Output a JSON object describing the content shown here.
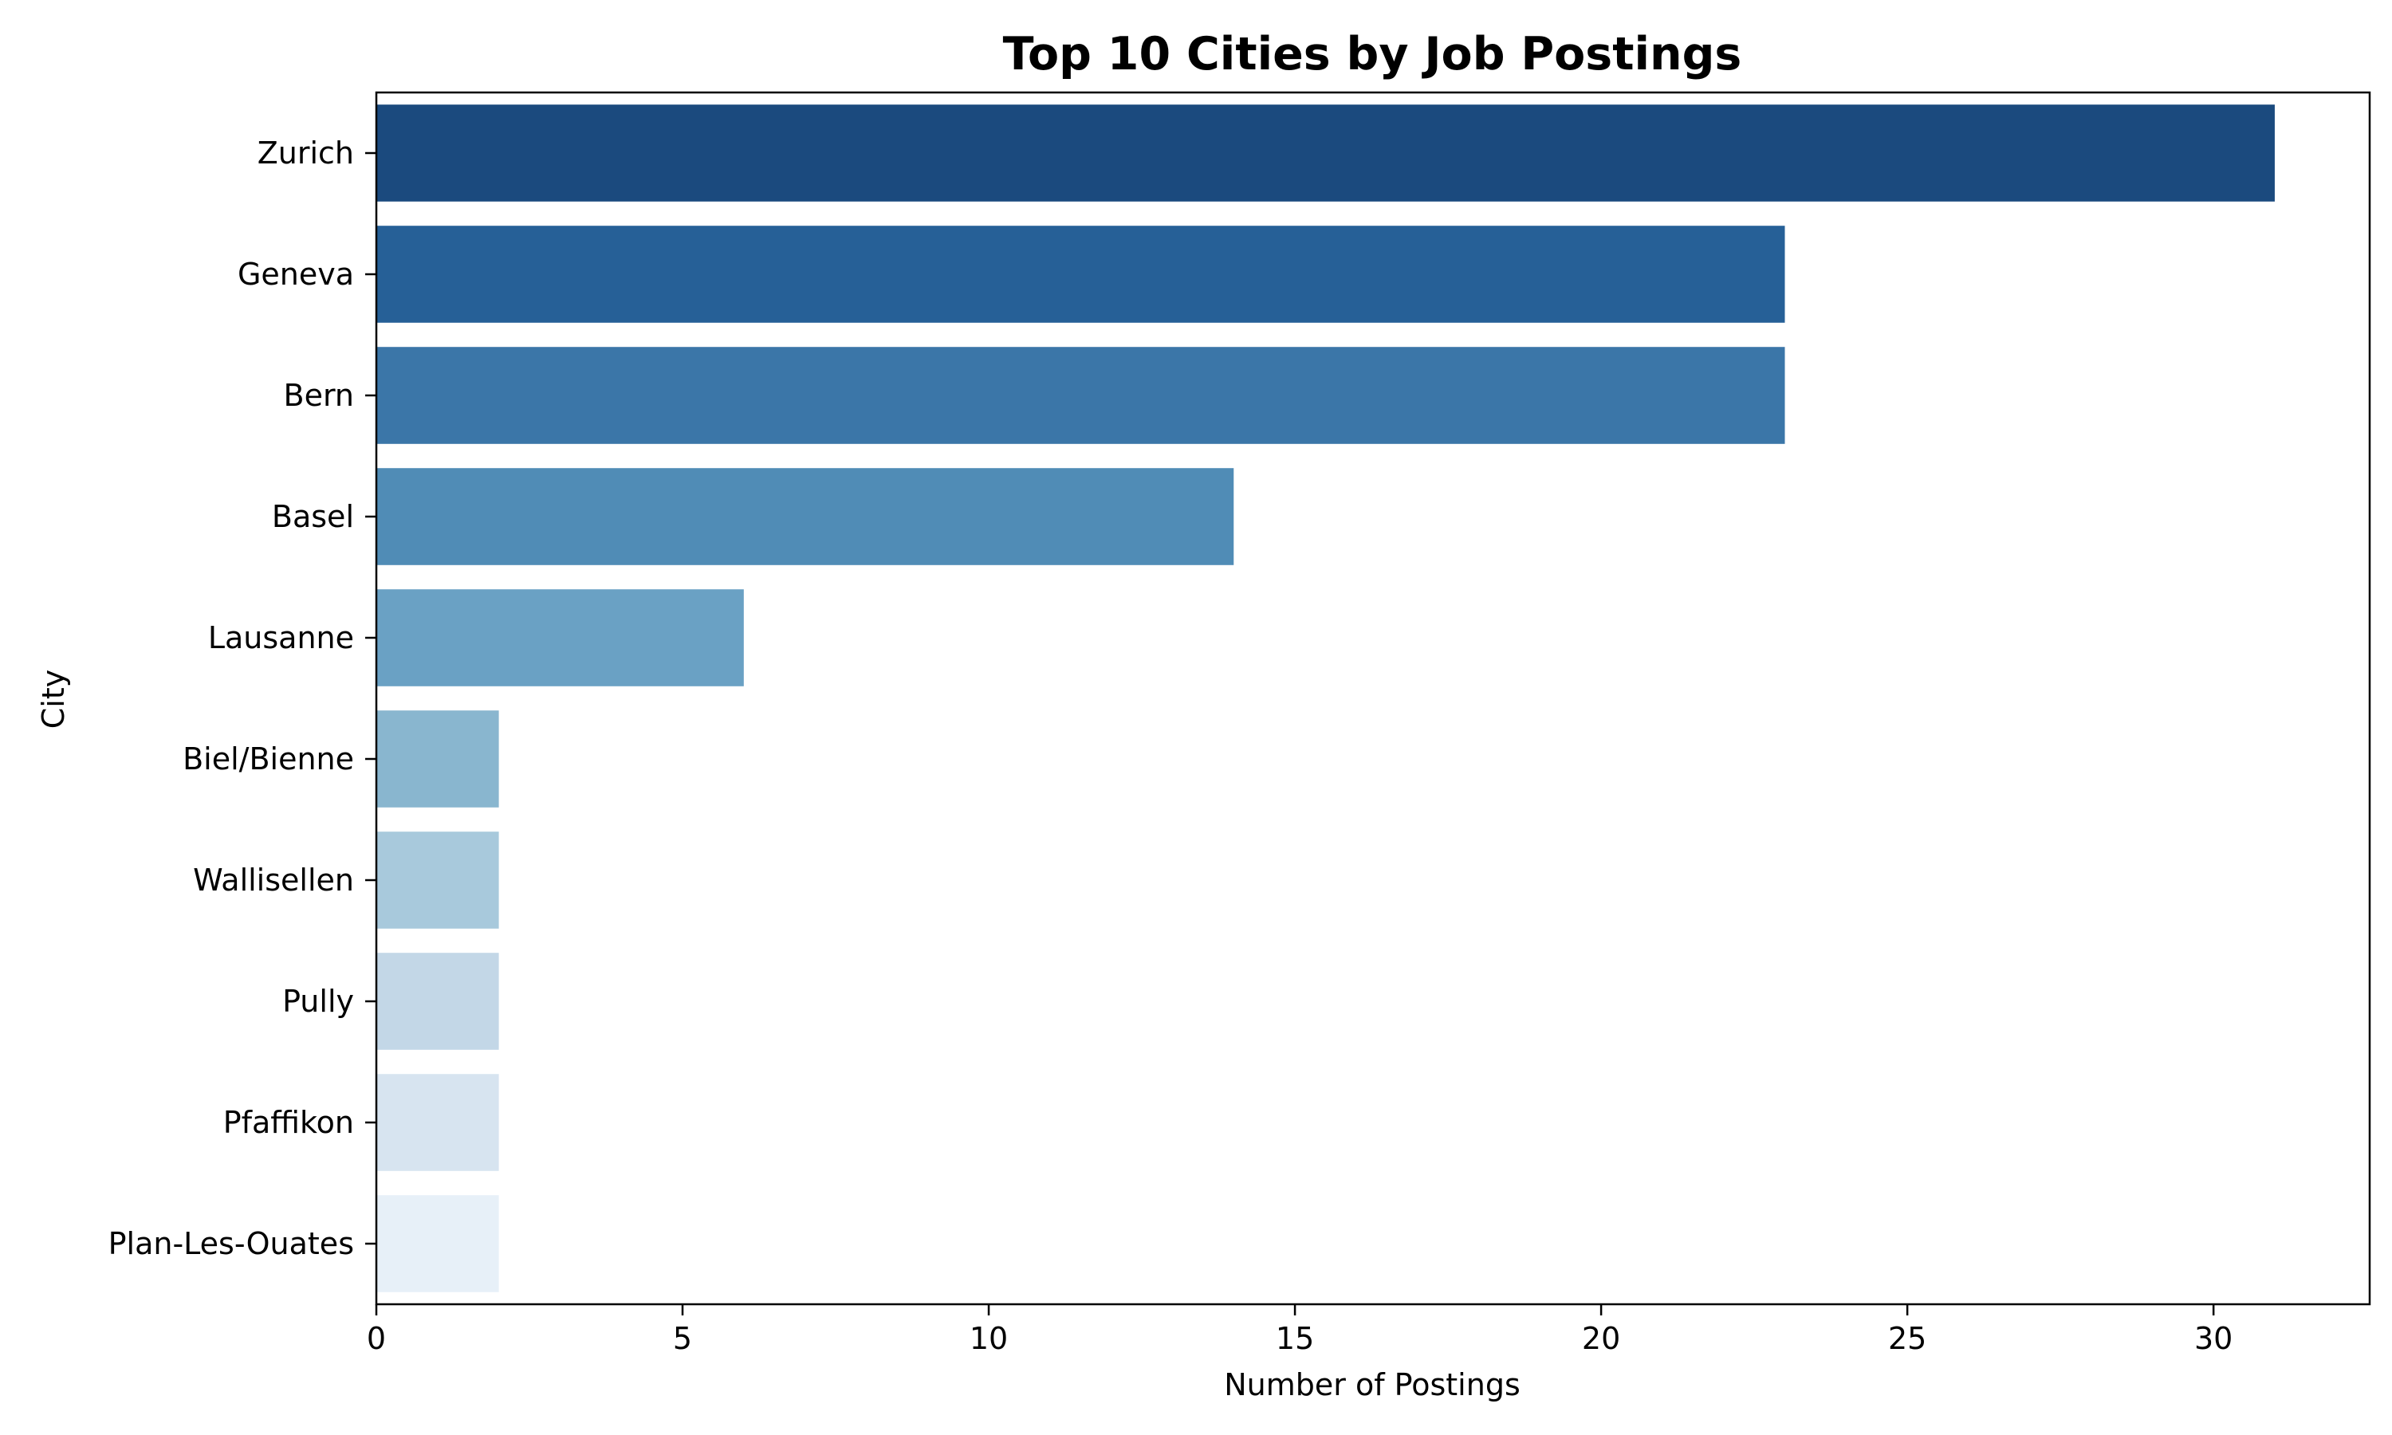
{
  "chart_data": {
    "type": "bar",
    "orientation": "horizontal",
    "title": "Top 10 Cities by Job Postings",
    "xlabel": "Number of Postings",
    "ylabel": "City",
    "xlim": [
      0,
      32.55
    ],
    "xticks": [
      0,
      5,
      10,
      15,
      20,
      25,
      30
    ],
    "grid": false,
    "categories": [
      "Zurich",
      "Geneva",
      "Bern",
      "Basel",
      "Lausanne",
      "Biel/Bienne",
      "Wallisellen",
      "Pully",
      "Pfaffikon",
      "Plan-Les-Ouates"
    ],
    "values": [
      31,
      23,
      23,
      14,
      6,
      2,
      2,
      2,
      2,
      2
    ],
    "colors": [
      "#1b4a7e",
      "#266097",
      "#3b76a8",
      "#508cb6",
      "#6aa1c4",
      "#89b6cf",
      "#a8c9dc",
      "#c3d7e7",
      "#d7e4f0",
      "#e7f0f8"
    ]
  }
}
